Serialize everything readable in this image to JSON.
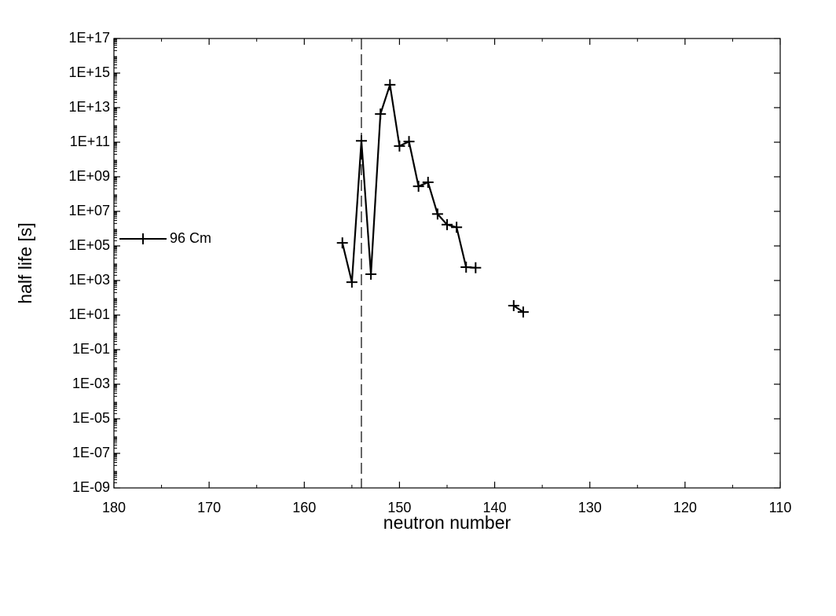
{
  "chart_data": {
    "type": "line",
    "x_label": "neutron number",
    "y_label": "half life [s]",
    "x": [
      156,
      155,
      154,
      153,
      152,
      151,
      150,
      149,
      148,
      147,
      146,
      145,
      144,
      143,
      142,
      141,
      140,
      139,
      138,
      137
    ],
    "series": [
      {
        "name": "96 Cm",
        "color": "#000000",
        "marker": "+",
        "values": [
          150000,
          800,
          120000000000,
          2300,
          4300000000000,
          210000000000000,
          60000000000,
          110000000000,
          280000000,
          480000000,
          7000000,
          1700000,
          1200000,
          5900,
          5500,
          null,
          null,
          null,
          35,
          15
        ]
      }
    ],
    "xlim": [
      180,
      110
    ],
    "xticks": [
      180,
      170,
      160,
      150,
      140,
      130,
      120,
      110
    ],
    "ylim": [
      1e-09,
      1e+17
    ],
    "y_scale": "log",
    "yticks": [
      {
        "value": 1e+17,
        "label": "1E+17"
      },
      {
        "value": 1000000000000000.0,
        "label": "1E+15"
      },
      {
        "value": 10000000000000.0,
        "label": "1E+13"
      },
      {
        "value": 100000000000.0,
        "label": "1E+11"
      },
      {
        "value": 1000000000.0,
        "label": "1E+09"
      },
      {
        "value": 10000000.0,
        "label": "1E+07"
      },
      {
        "value": 100000.0,
        "label": "1E+05"
      },
      {
        "value": 1000.0,
        "label": "1E+03"
      },
      {
        "value": 10,
        "label": "1E+01"
      },
      {
        "value": 0.1,
        "label": "1E-01"
      },
      {
        "value": 0.001,
        "label": "1E-03"
      },
      {
        "value": 1e-05,
        "label": "1E-05"
      },
      {
        "value": 1e-07,
        "label": "1E-07"
      },
      {
        "value": 1e-09,
        "label": "1E-09"
      }
    ],
    "reference_line": {
      "x": 154,
      "style": "dashed"
    },
    "legend": "left",
    "grid": false
  }
}
